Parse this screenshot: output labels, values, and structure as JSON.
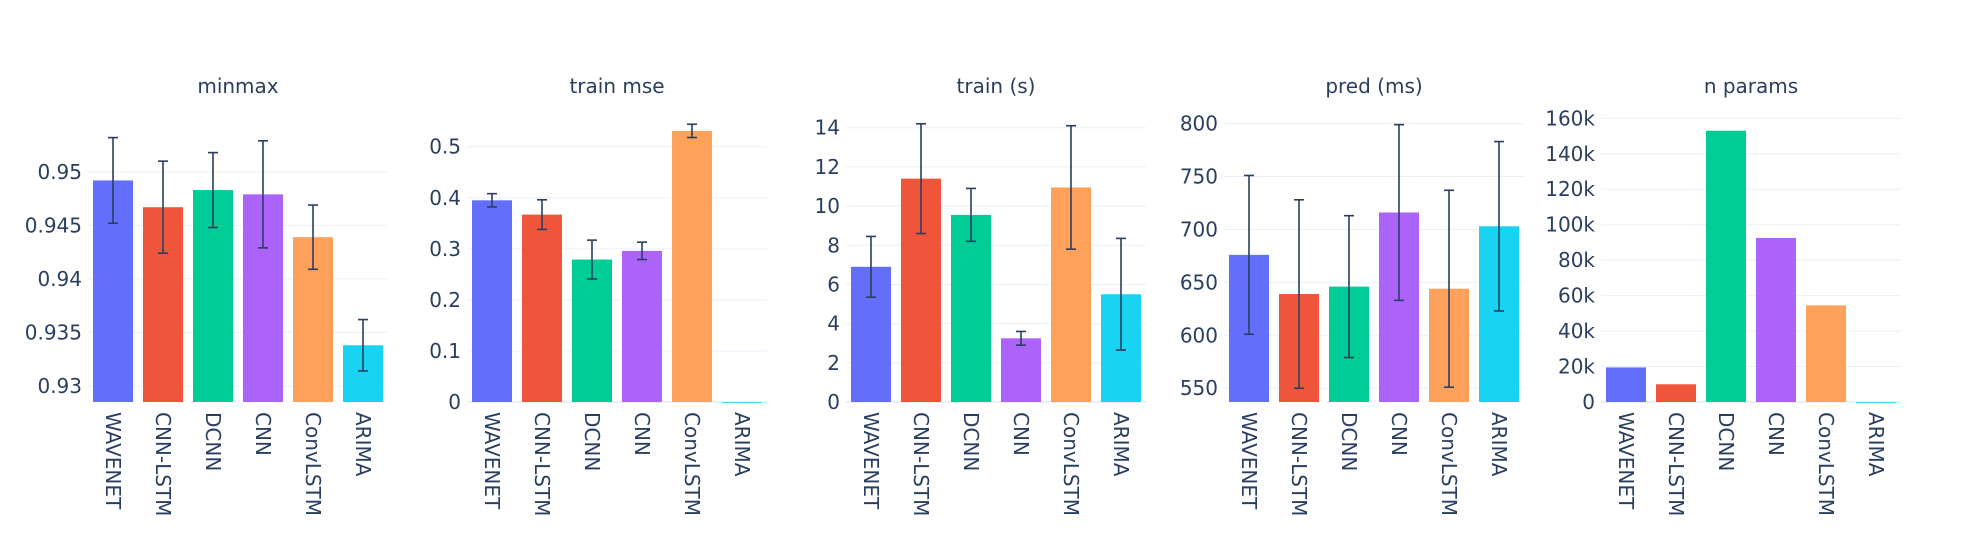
{
  "chart_data": [
    {
      "type": "bar",
      "title": "minmax",
      "categories": [
        "WAVENET",
        "CNN-LSTM",
        "DCNN",
        "CNN",
        "ConvLSTM",
        "ARIMA"
      ],
      "values": [
        0.9492,
        0.9467,
        0.9483,
        0.9479,
        0.9439,
        0.9338
      ],
      "errors": [
        0.004,
        0.0043,
        0.0035,
        0.005,
        0.003,
        0.0024
      ],
      "ylim": [
        0.9285,
        0.9555
      ],
      "yticks": [
        0.93,
        0.935,
        0.94,
        0.945,
        0.95
      ],
      "ytick_labels": [
        "0.93",
        "0.935",
        "0.94",
        "0.945",
        "0.95"
      ]
    },
    {
      "type": "bar",
      "title": "train mse",
      "categories": [
        "WAVENET",
        "CNN-LSTM",
        "DCNN",
        "CNN",
        "ConvLSTM",
        "ARIMA"
      ],
      "values": [
        0.395,
        0.367,
        0.279,
        0.296,
        0.531,
        0.0
      ],
      "errors": [
        0.013,
        0.029,
        0.038,
        0.017,
        0.013,
        0.0
      ],
      "ylim": [
        0,
        0.566
      ],
      "yticks": [
        0,
        0.1,
        0.2,
        0.3,
        0.4,
        0.5
      ],
      "ytick_labels": [
        "0",
        "0.1",
        "0.2",
        "0.3",
        "0.4",
        "0.5"
      ]
    },
    {
      "type": "bar",
      "title": "train (s)",
      "categories": [
        "WAVENET",
        "CNN-LSTM",
        "DCNN",
        "CNN",
        "ConvLSTM",
        "ARIMA"
      ],
      "values": [
        6.9,
        11.4,
        9.55,
        3.25,
        10.95,
        5.5
      ],
      "errors": [
        1.55,
        2.8,
        1.35,
        0.35,
        3.15,
        2.85
      ],
      "ylim": [
        0,
        14.75
      ],
      "yticks": [
        0,
        2,
        4,
        6,
        8,
        10,
        12,
        14
      ],
      "ytick_labels": [
        "0",
        "2",
        "4",
        "6",
        "8",
        "10",
        "12",
        "14"
      ]
    },
    {
      "type": "bar",
      "title": "pred (ms)",
      "categories": [
        "WAVENET",
        "CNN-LSTM",
        "DCNN",
        "CNN",
        "ConvLSTM",
        "ARIMA"
      ],
      "values": [
        676,
        639,
        646,
        716,
        644,
        703
      ],
      "errors": [
        75,
        89,
        67,
        83,
        93,
        80
      ],
      "ylim": [
        537,
        810
      ],
      "yticks": [
        550,
        600,
        650,
        700,
        750,
        800
      ],
      "ytick_labels": [
        "550",
        "600",
        "650",
        "700",
        "750",
        "800"
      ]
    },
    {
      "type": "bar",
      "title": "n params",
      "categories": [
        "WAVENET",
        "CNN-LSTM",
        "DCNN",
        "CNN",
        "ConvLSTM",
        "ARIMA"
      ],
      "values": [
        19500,
        10000,
        153000,
        92500,
        54500,
        0
      ],
      "errors": [
        0,
        0,
        0,
        0,
        0,
        0
      ],
      "ylim": [
        0,
        163000
      ],
      "yticks": [
        0,
        20000,
        40000,
        60000,
        80000,
        100000,
        120000,
        140000,
        160000
      ],
      "ytick_labels": [
        "0",
        "20k",
        "40k",
        "60k",
        "80k",
        "100k",
        "120k",
        "140k",
        "160k"
      ]
    }
  ],
  "colors": [
    "#636efa",
    "#ef553b",
    "#00cc96",
    "#ab63fa",
    "#ffa15a",
    "#19d3f3"
  ]
}
